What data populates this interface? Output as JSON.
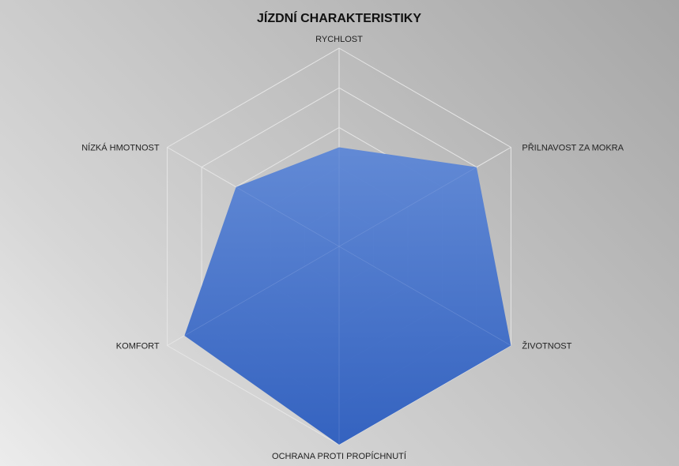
{
  "chart_data": {
    "type": "radar",
    "title": "JÍZDNÍ CHARAKTERISTIKY",
    "categories": [
      "RYCHLOST",
      "PŘILNAVOST ZA MOKRA",
      "ŽIVOTNOST",
      "OCHRANA PROTI PROPÍCHNUTÍ",
      "KOMFORT",
      "NÍZKÁ HMOTNOST"
    ],
    "series": [
      {
        "values": [
          2.5,
          4,
          5,
          5,
          4.5,
          3
        ]
      }
    ],
    "rlim": [
      0,
      5
    ],
    "rings": 5,
    "grid": true,
    "legend": "none",
    "fill_color_top": "#5f88d6",
    "fill_color_bottom": "#2f5fbf",
    "grid_color": "#e6e6e6"
  }
}
